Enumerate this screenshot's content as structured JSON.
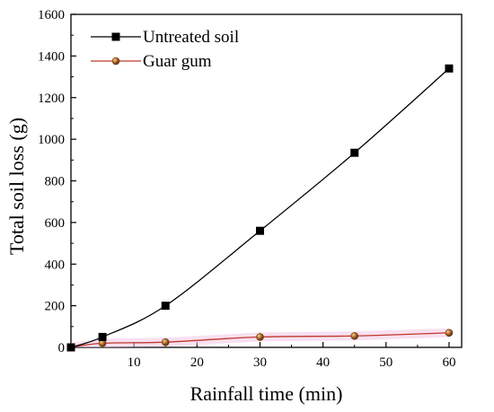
{
  "chart_data": {
    "type": "line",
    "xlabel": "Rainfall time (min)",
    "ylabel": "Total soil loss (g)",
    "xlim": [
      0,
      62
    ],
    "ylim": [
      0,
      1600
    ],
    "x_ticks": [
      10,
      20,
      30,
      40,
      50,
      60
    ],
    "y_ticks": [
      0,
      200,
      400,
      600,
      800,
      1000,
      1200,
      1400,
      1600
    ],
    "grid": false,
    "legend_position": "top-left",
    "series": [
      {
        "name": "Untreated soil",
        "marker": "square",
        "color": "#000000",
        "x": [
          0,
          5,
          15,
          30,
          45,
          60
        ],
        "y": [
          0,
          50,
          200,
          560,
          935,
          1340
        ]
      },
      {
        "name": "Guar gum",
        "marker": "circle",
        "color": "#c0392b",
        "marker_fill": "#8b5a2b",
        "x": [
          0,
          5,
          15,
          30,
          45,
          60
        ],
        "y": [
          0,
          20,
          25,
          50,
          55,
          70
        ]
      }
    ]
  }
}
